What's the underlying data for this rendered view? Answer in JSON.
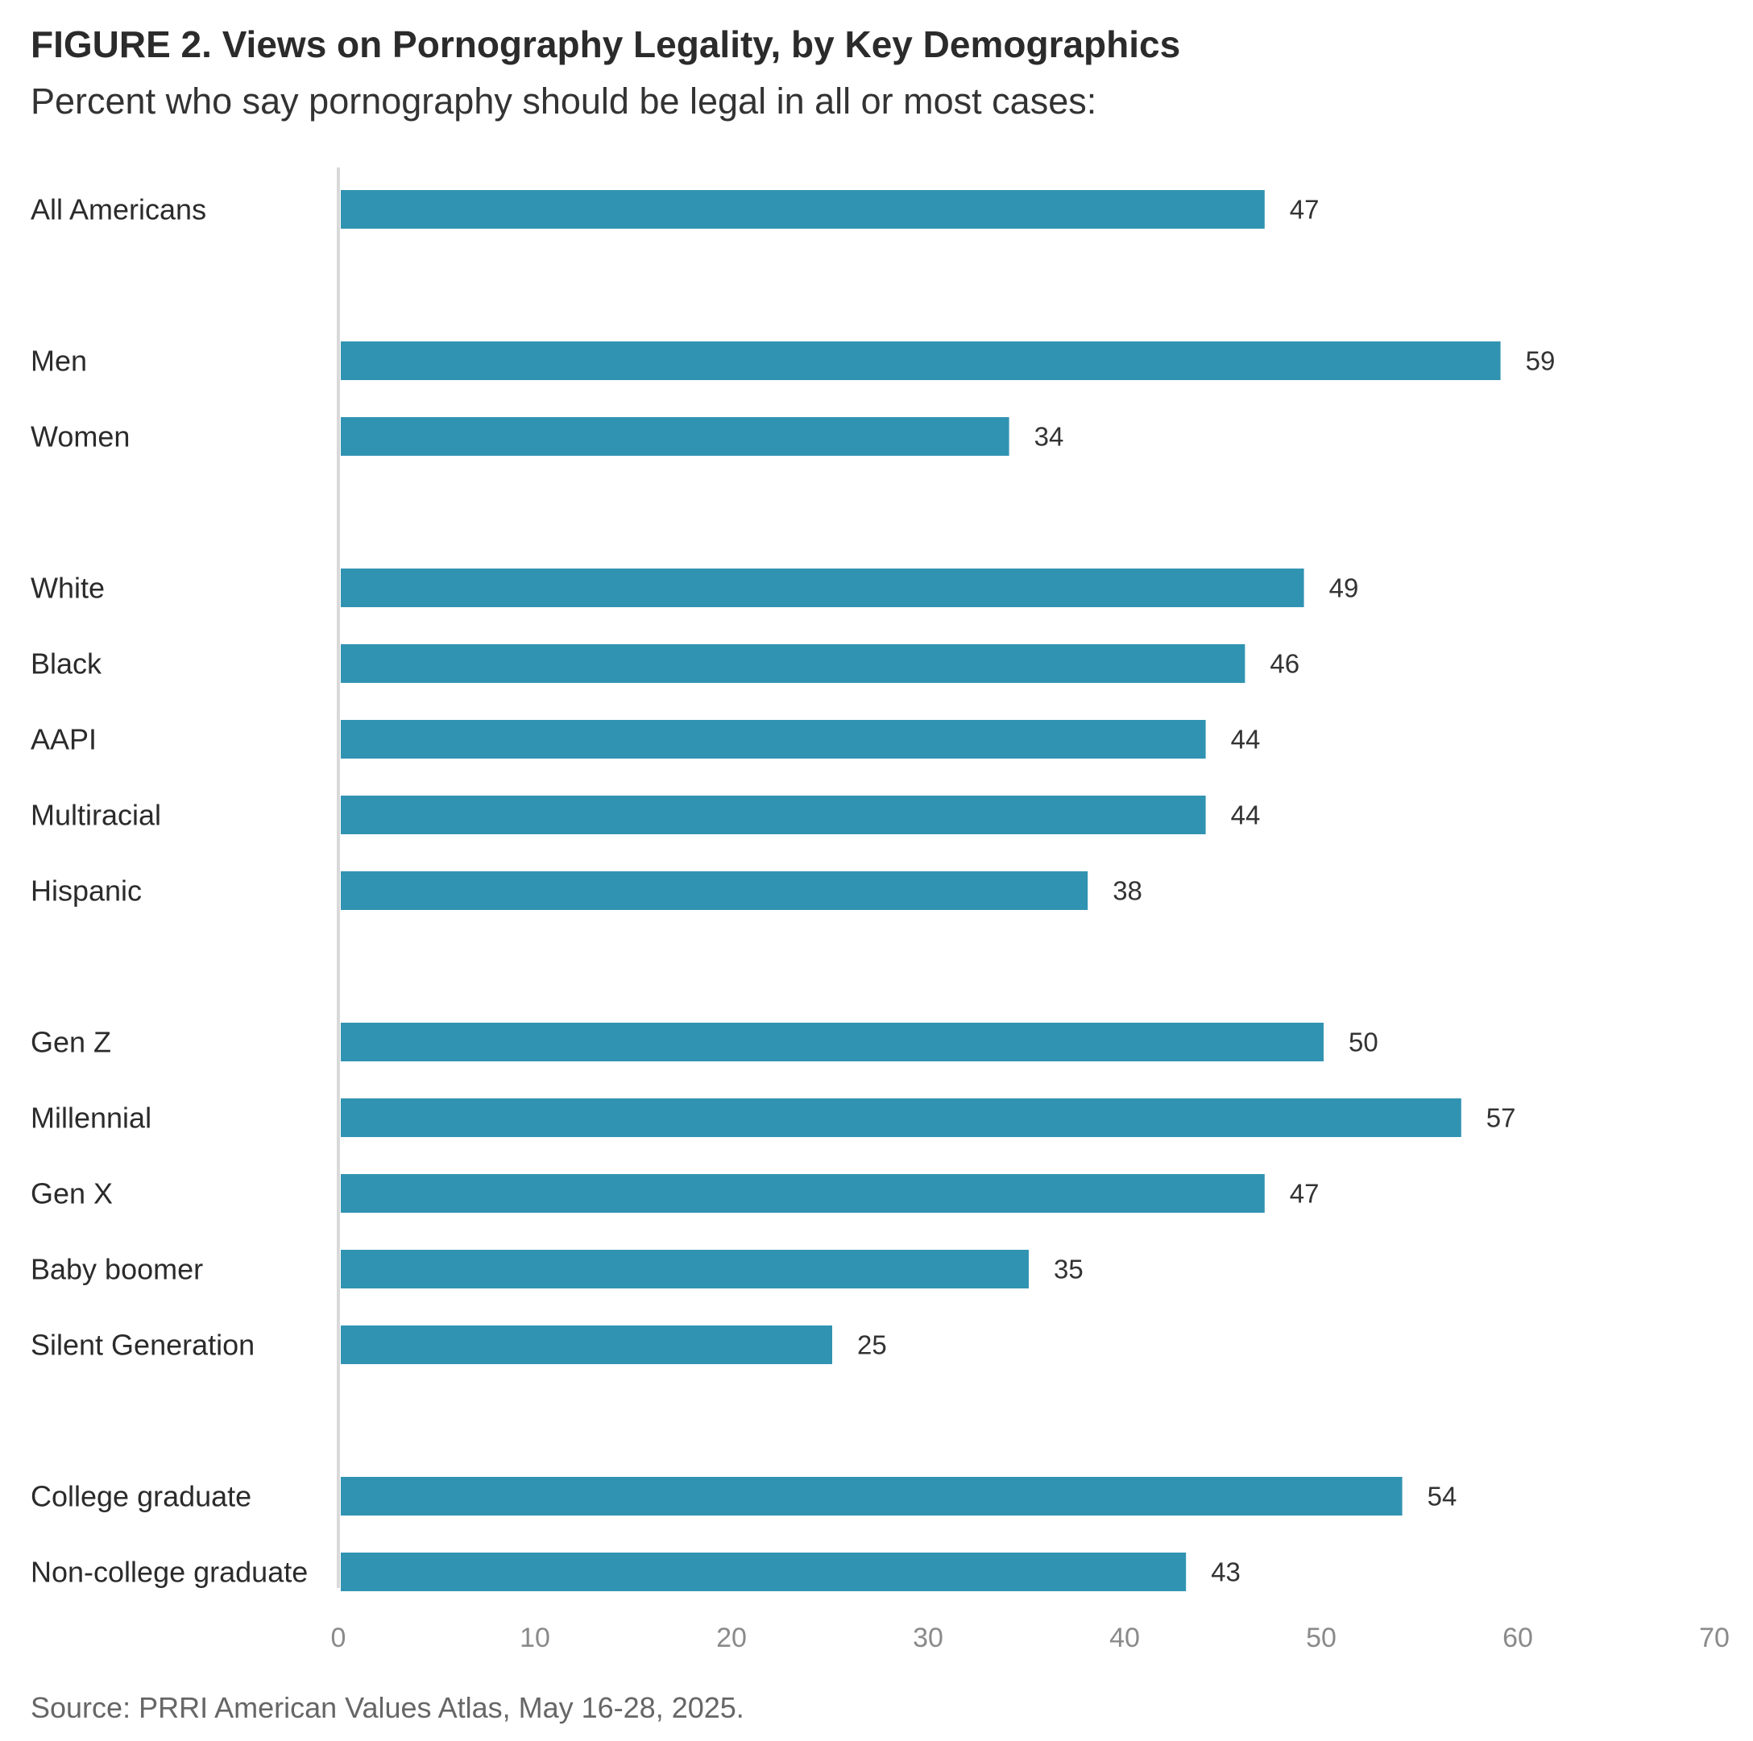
{
  "chart_data": {
    "type": "bar",
    "orientation": "horizontal",
    "title": "FIGURE 2. Views on Pornography Legality, by Key Demographics",
    "subtitle": "Percent who say pornography should be legal in all or most cases:",
    "source": "Source: PRRI American Values Atlas, May 16-28, 2025.",
    "xlabel": "",
    "ylabel": "",
    "xlim": [
      0,
      70
    ],
    "ticks": [
      0,
      10,
      20,
      30,
      40,
      50,
      60,
      70
    ],
    "grid": false,
    "bar_color": "#3193b2",
    "axis_color": "#d9d9d9",
    "groups": [
      {
        "categories": [
          "All Americans"
        ],
        "values": [
          47
        ]
      },
      {
        "categories": [
          "Men",
          "Women"
        ],
        "values": [
          59,
          34
        ]
      },
      {
        "categories": [
          "White",
          "Black",
          "AAPI",
          "Multiracial",
          "Hispanic"
        ],
        "values": [
          49,
          46,
          44,
          44,
          38
        ]
      },
      {
        "categories": [
          "Gen Z",
          "Millennial",
          "Gen X",
          "Baby boomer",
          "Silent Generation"
        ],
        "values": [
          50,
          57,
          47,
          35,
          25
        ]
      },
      {
        "categories": [
          "College graduate",
          "Non-college graduate"
        ],
        "values": [
          54,
          43
        ]
      }
    ]
  }
}
